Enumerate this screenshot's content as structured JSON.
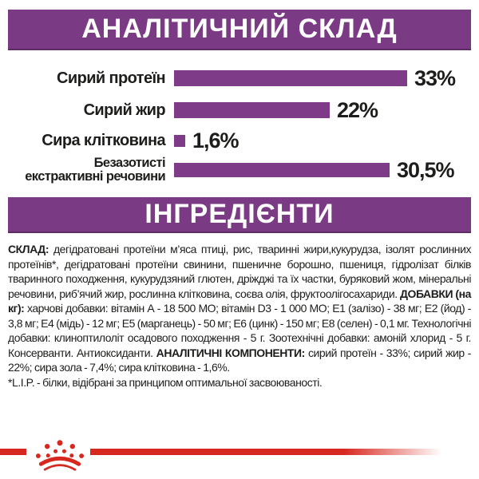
{
  "colors": {
    "purple_header": "#7b3a84",
    "purple_bar": "#7e3c88",
    "red": "#d7281f",
    "text": "#1d1d1b"
  },
  "header_analytical": "АНАЛІТИЧНИЙ СКЛАД",
  "header_ingredients": "ІНГРЕДІЄНТИ",
  "chart_data": {
    "type": "bar",
    "orientation": "horizontal",
    "title": "АНАЛІТИЧНИЙ СКЛАД",
    "categories": [
      "Сирий протеїн",
      "Сирий жир",
      "Сира клітковина",
      "Безазотисті\nекстрактивні речовини"
    ],
    "values": [
      33,
      22,
      1.6,
      30.5
    ],
    "value_labels": [
      "33%",
      "22%",
      "1,6%",
      "30,5%"
    ],
    "xlim": [
      0,
      33
    ],
    "grid": false,
    "legend": false,
    "bar_color": "#7e3c88"
  },
  "composition": {
    "segments": [
      {
        "text": "СКЛАД: ",
        "bold": true
      },
      {
        "text": "дегідратовані протеїни м’яса птиці, рис, тваринні жири,кукурудза, ізолят рослинних протеїнів*, дегідратовані протеїни свинини, пшеничне борошно, пшениця, гідролізат білків тваринного походження, кукурудзяний глютен, дріжджі та їх частки, буряковий жом, мінеральні речовини, риб’ячий жир, рослинна клітковина, соєва олія, фруктоолігосахариди. ",
        "bold": false
      },
      {
        "text": "ДОБАВКИ (на кг): ",
        "bold": true
      },
      {
        "text": "харчові добавки: вітамін А - 18 500 МО; вітамін D3 - 1 000 МО; Е1 (залізо) - 38 мг; Е2 (йод) - 3,8 мг; Е4 (мідь) - 12 мг; Е5 (марганець) - 50 мг; Е6 (цинк) - 150 мг; Е8 (селен) - 0,1 мг. Технологічні добавки: клиноптилоліт осадового походження - 5 г. Зоотехнічні добавки: амоній хлорид - 5 г. Консерванти. Антиоксиданти. ",
        "bold": false
      },
      {
        "text": "АНАЛІТИЧНІ КОМПОНЕНТИ: ",
        "bold": true
      },
      {
        "text": "сирий протеїн - 33%; сирий жир - 22%; сира зола - 7,4%; сира клітковина - 1,6%.",
        "bold": false
      }
    ]
  },
  "footnote": "*L.I.P. - білки, відібрані за принципом оптимальної засвоюваності.",
  "logo": {
    "name": "royal-canin-crown"
  }
}
